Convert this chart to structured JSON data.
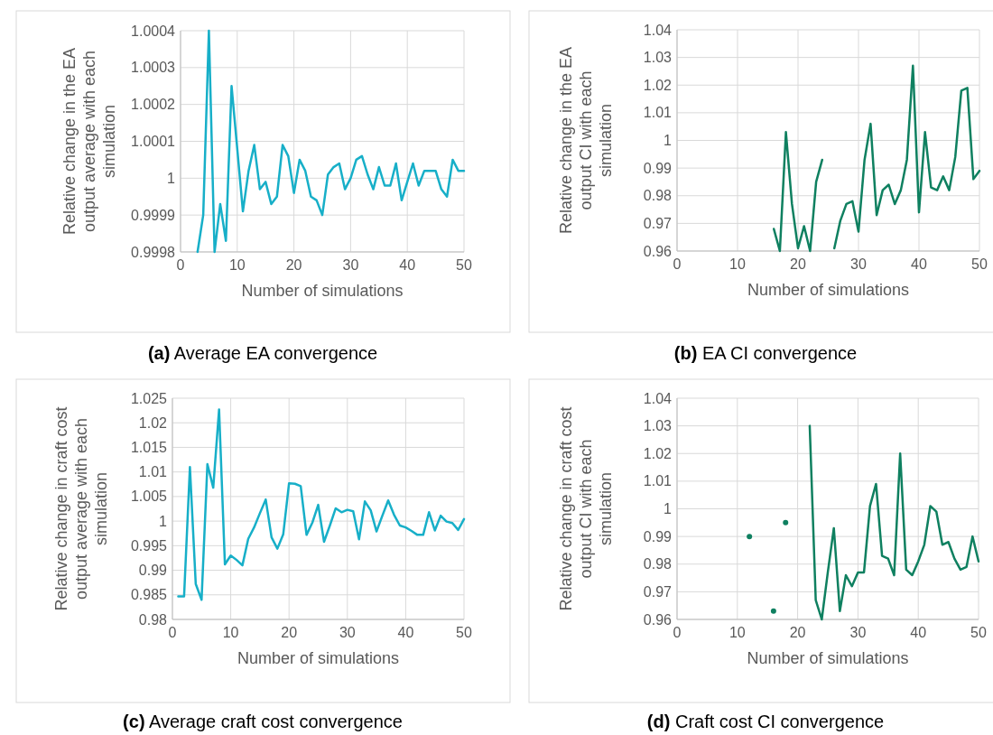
{
  "chart_data": [
    {
      "type": "line",
      "title": "(a) Average EA convergence",
      "xlabel": "Number of simulations",
      "ylabel": "Relative change in the EA output average with each simulation",
      "xlim": [
        0,
        50
      ],
      "xticks": [
        0,
        10,
        20,
        30,
        40,
        50
      ],
      "ylim": [
        0.9998,
        1.0004
      ],
      "yticks": [
        0.9998,
        0.9999,
        1,
        1.0001,
        1.0002,
        1.0003,
        1.0004
      ],
      "grid": true,
      "series": [
        {
          "color": "#17afc8",
          "x": [
            3,
            4,
            5,
            6,
            7,
            8,
            9,
            10,
            11,
            12,
            13,
            14,
            15,
            16,
            17,
            18,
            19,
            20,
            21,
            22,
            23,
            24,
            25,
            26,
            27,
            28,
            29,
            30,
            31,
            32,
            33,
            34,
            35,
            36,
            37,
            38,
            39,
            40,
            41,
            42,
            43,
            44,
            45,
            46,
            47,
            48,
            49,
            50
          ],
          "values": [
            0.9998,
            0.9999,
            1.0004,
            0.9998,
            0.99993,
            0.99983,
            1.00025,
            1.00008,
            0.99991,
            1.00002,
            1.00009,
            0.99997,
            0.99999,
            0.99993,
            0.99995,
            1.00009,
            1.00006,
            0.99996,
            1.00005,
            1.00002,
            0.99995,
            0.99994,
            0.9999,
            1.00001,
            1.00003,
            1.00004,
            0.99997,
            1.0,
            1.00005,
            1.00006,
            1.00001,
            0.99997,
            1.00003,
            0.99998,
            0.99998,
            1.00004,
            0.99994,
            0.99999,
            1.00004,
            0.99998,
            1.00002,
            1.00002,
            1.00002,
            0.99997,
            0.99995,
            1.00005,
            1.00002,
            1.00002
          ]
        }
      ]
    },
    {
      "type": "line",
      "title": "(b) EA CI convergence",
      "xlabel": "Number of simulations",
      "ylabel": "Relative change in the EA output CI with each simulation",
      "xlim": [
        0,
        50
      ],
      "xticks": [
        0,
        10,
        20,
        30,
        40,
        50
      ],
      "ylim": [
        0.96,
        1.04
      ],
      "yticks": [
        0.96,
        0.97,
        0.98,
        0.99,
        1,
        1.01,
        1.02,
        1.03,
        1.04
      ],
      "grid": true,
      "series": [
        {
          "color": "#0f8060",
          "x": [
            16,
            17,
            18,
            19,
            20,
            21,
            22,
            23,
            24
          ],
          "values": [
            0.968,
            0.96,
            1.003,
            0.977,
            0.961,
            0.969,
            0.96,
            0.985,
            0.993
          ]
        },
        {
          "color": "#0f8060",
          "x": [
            26,
            27,
            28,
            29,
            30,
            31,
            32,
            33,
            34,
            35,
            36,
            37,
            38,
            39,
            40,
            41,
            42,
            43,
            44,
            45,
            46,
            47,
            48,
            49,
            50
          ],
          "values": [
            0.961,
            0.971,
            0.977,
            0.978,
            0.967,
            0.993,
            1.006,
            0.973,
            0.982,
            0.984,
            0.977,
            0.982,
            0.993,
            1.027,
            0.974,
            1.003,
            0.983,
            0.982,
            0.987,
            0.982,
            0.994,
            1.018,
            1.019,
            0.986,
            0.989
          ]
        }
      ]
    },
    {
      "type": "line",
      "title": "(c) Average craft cost convergence",
      "xlabel": "Number of simulations",
      "ylabel": "Relative change in craft cost output average with each simulation",
      "xlim": [
        0,
        50
      ],
      "xticks": [
        0,
        10,
        20,
        30,
        40,
        50
      ],
      "ylim": [
        0.98,
        1.025
      ],
      "yticks": [
        0.98,
        0.985,
        0.99,
        0.995,
        1,
        1.005,
        1.01,
        1.015,
        1.02,
        1.025
      ],
      "grid": true,
      "series": [
        {
          "color": "#17afc8",
          "x": [
            1,
            2,
            3,
            4,
            5,
            6,
            7,
            8,
            9,
            10,
            11,
            12,
            13,
            14,
            15,
            16,
            17,
            18,
            19,
            20,
            21,
            22,
            23,
            24,
            25,
            26,
            27,
            28,
            29,
            30,
            31,
            32,
            33,
            34,
            35,
            36,
            37,
            38,
            39,
            40,
            41,
            42,
            43,
            44,
            45,
            46,
            47,
            48,
            49,
            50
          ],
          "values": [
            0.9847,
            0.9847,
            1.011,
            0.9872,
            0.984,
            1.0116,
            1.0068,
            1.0227,
            0.9912,
            0.993,
            0.9921,
            0.991,
            0.9964,
            0.9987,
            1.0016,
            1.0044,
            0.9967,
            0.9944,
            0.9973,
            1.0077,
            1.0076,
            1.0071,
            0.9972,
            0.9997,
            1.0033,
            0.9958,
            0.9991,
            1.0026,
            1.0018,
            1.0023,
            1.002,
            0.9963,
            1.004,
            1.0022,
            0.9979,
            1.0011,
            1.0042,
            1.0013,
            0.9991,
            0.9987,
            0.998,
            0.9972,
            0.9972,
            1.0018,
            0.9981,
            1.0011,
            0.9999,
            0.9996,
            0.9982,
            1.0004
          ]
        }
      ]
    },
    {
      "type": "line",
      "title": "(d) Craft cost CI convergence",
      "xlabel": "Number of simulations",
      "ylabel": "Relative change in craft cost output CI with each simulation",
      "xlim": [
        0,
        50
      ],
      "xticks": [
        0,
        10,
        20,
        30,
        40,
        50
      ],
      "ylim": [
        0.96,
        1.04
      ],
      "yticks": [
        0.96,
        0.97,
        0.98,
        0.99,
        1,
        1.01,
        1.02,
        1.03,
        1.04
      ],
      "grid": true,
      "series": [
        {
          "type": "scatter",
          "marker": "circle",
          "color": "#0f8060",
          "x": [
            12,
            16,
            18
          ],
          "values": [
            0.99,
            0.963,
            0.995
          ]
        },
        {
          "color": "#0f8060",
          "x": [
            22,
            23,
            24,
            25,
            26,
            27,
            28,
            29,
            30,
            31,
            32,
            33,
            34,
            35,
            36,
            37,
            38,
            39,
            40,
            41,
            42,
            43,
            44,
            45,
            46,
            47,
            48,
            49,
            50
          ],
          "values": [
            1.03,
            0.967,
            0.96,
            0.977,
            0.993,
            0.963,
            0.976,
            0.972,
            0.977,
            0.977,
            1.001,
            1.009,
            0.983,
            0.982,
            0.976,
            1.02,
            0.978,
            0.976,
            0.981,
            0.987,
            1.001,
            0.999,
            0.987,
            0.988,
            0.982,
            0.978,
            0.979,
            0.99,
            0.981
          ]
        }
      ]
    }
  ]
}
